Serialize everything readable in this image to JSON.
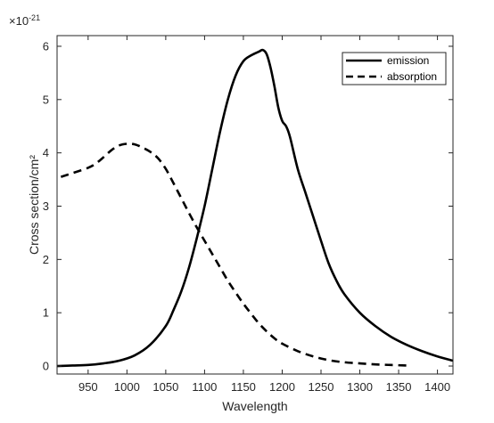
{
  "chart_data": {
    "type": "line",
    "xlabel": "Wavelength",
    "ylabel": "Cross section/cm²",
    "y_multiplier": "×10",
    "y_exponent": "-21",
    "xlim": [
      910,
      1420
    ],
    "ylim": [
      -0.15,
      6.2
    ],
    "x_ticks": [
      950,
      1000,
      1050,
      1100,
      1150,
      1200,
      1250,
      1300,
      1350,
      1400
    ],
    "y_ticks": [
      0,
      1,
      2,
      3,
      4,
      5,
      6
    ],
    "grid": false,
    "legend_position": "top-right",
    "series": [
      {
        "name": "emission",
        "style": "solid",
        "color": "#000000",
        "x": [
          910,
          930,
          950,
          970,
          990,
          1010,
          1030,
          1050,
          1060,
          1070,
          1080,
          1090,
          1100,
          1110,
          1120,
          1130,
          1140,
          1150,
          1160,
          1170,
          1175,
          1180,
          1185,
          1190,
          1195,
          1200,
          1205,
          1210,
          1220,
          1230,
          1240,
          1250,
          1260,
          1270,
          1280,
          1300,
          1320,
          1340,
          1360,
          1380,
          1400,
          1420
        ],
        "y": [
          0.0,
          0.01,
          0.02,
          0.05,
          0.1,
          0.2,
          0.4,
          0.75,
          1.05,
          1.4,
          1.85,
          2.4,
          3.0,
          3.7,
          4.4,
          5.0,
          5.45,
          5.72,
          5.83,
          5.9,
          5.93,
          5.85,
          5.6,
          5.25,
          4.85,
          4.6,
          4.5,
          4.3,
          3.7,
          3.25,
          2.8,
          2.35,
          1.92,
          1.6,
          1.35,
          1.0,
          0.75,
          0.55,
          0.4,
          0.28,
          0.18,
          0.1
        ]
      },
      {
        "name": "absorption",
        "style": "dashed",
        "color": "#000000",
        "x": [
          915,
          930,
          950,
          960,
          970,
          980,
          990,
          1000,
          1010,
          1020,
          1030,
          1040,
          1050,
          1060,
          1070,
          1080,
          1090,
          1100,
          1110,
          1120,
          1130,
          1140,
          1150,
          1160,
          1170,
          1180,
          1190,
          1200,
          1220,
          1240,
          1260,
          1280,
          1300,
          1320,
          1340,
          1360
        ],
        "y": [
          3.55,
          3.62,
          3.72,
          3.8,
          3.92,
          4.05,
          4.14,
          4.17,
          4.16,
          4.1,
          4.02,
          3.9,
          3.7,
          3.43,
          3.15,
          2.87,
          2.6,
          2.35,
          2.1,
          1.85,
          1.6,
          1.38,
          1.17,
          0.98,
          0.8,
          0.65,
          0.52,
          0.42,
          0.28,
          0.18,
          0.11,
          0.07,
          0.05,
          0.03,
          0.02,
          0.01
        ]
      }
    ]
  }
}
